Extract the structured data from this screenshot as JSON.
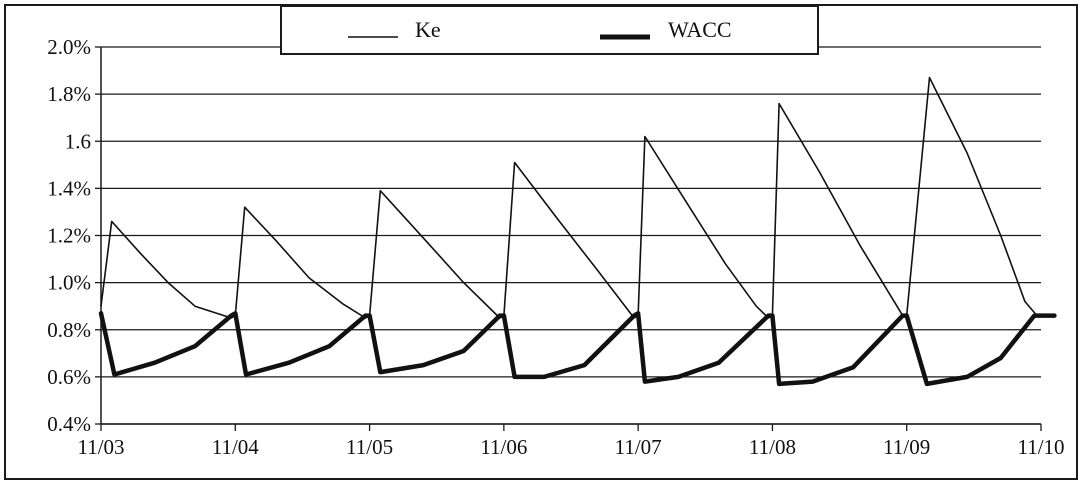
{
  "chart_data": {
    "type": "line",
    "title": "",
    "xlabel": "",
    "ylabel": "",
    "x_ticks": [
      "11/03",
      "11/04",
      "11/05",
      "11/06",
      "11/07",
      "11/08",
      "11/09",
      "11/10"
    ],
    "y_ticks": [
      "0.4%",
      "0.6%",
      "0.8%",
      "1.0%",
      "1.2%",
      "1.4%",
      "1.6",
      "1.8%",
      "2.0%"
    ],
    "xlim": [
      0,
      7
    ],
    "ylim": [
      0.4,
      2.0
    ],
    "grid": "horizontal",
    "legend_position": "top-center",
    "series": [
      {
        "name": "Ke",
        "color": "#111111",
        "stroke": "thin",
        "points": [
          [
            0.0,
            0.9
          ],
          [
            0.08,
            1.26
          ],
          [
            0.3,
            1.12
          ],
          [
            0.5,
            1.0
          ],
          [
            0.7,
            0.9
          ],
          [
            0.97,
            0.85
          ],
          [
            1.0,
            0.86
          ],
          [
            1.07,
            1.32
          ],
          [
            1.3,
            1.18
          ],
          [
            1.55,
            1.02
          ],
          [
            1.8,
            0.91
          ],
          [
            1.97,
            0.85
          ],
          [
            2.0,
            0.86
          ],
          [
            2.08,
            1.39
          ],
          [
            2.4,
            1.19
          ],
          [
            2.7,
            1.0
          ],
          [
            2.97,
            0.85
          ],
          [
            3.0,
            0.86
          ],
          [
            3.08,
            1.51
          ],
          [
            3.4,
            1.27
          ],
          [
            3.7,
            1.05
          ],
          [
            3.97,
            0.85
          ],
          [
            4.0,
            0.86
          ],
          [
            4.05,
            1.62
          ],
          [
            4.35,
            1.35
          ],
          [
            4.65,
            1.08
          ],
          [
            4.88,
            0.9
          ],
          [
            4.97,
            0.85
          ],
          [
            5.0,
            0.86
          ],
          [
            5.05,
            1.76
          ],
          [
            5.35,
            1.47
          ],
          [
            5.65,
            1.16
          ],
          [
            5.97,
            0.86
          ],
          [
            6.0,
            0.86
          ],
          [
            6.17,
            1.87
          ],
          [
            6.45,
            1.55
          ],
          [
            6.7,
            1.2
          ],
          [
            6.88,
            0.92
          ],
          [
            6.97,
            0.86
          ],
          [
            7.1,
            0.86
          ]
        ]
      },
      {
        "name": "WACC",
        "color": "#111111",
        "stroke": "thick",
        "points": [
          [
            0.0,
            0.87
          ],
          [
            0.1,
            0.61
          ],
          [
            0.4,
            0.66
          ],
          [
            0.7,
            0.73
          ],
          [
            0.97,
            0.86
          ],
          [
            1.0,
            0.87
          ],
          [
            1.08,
            0.61
          ],
          [
            1.4,
            0.66
          ],
          [
            1.7,
            0.73
          ],
          [
            1.97,
            0.86
          ],
          [
            2.0,
            0.86
          ],
          [
            2.08,
            0.62
          ],
          [
            2.4,
            0.65
          ],
          [
            2.7,
            0.71
          ],
          [
            2.97,
            0.86
          ],
          [
            3.0,
            0.86
          ],
          [
            3.08,
            0.6
          ],
          [
            3.3,
            0.6
          ],
          [
            3.6,
            0.65
          ],
          [
            3.97,
            0.86
          ],
          [
            4.0,
            0.87
          ],
          [
            4.05,
            0.58
          ],
          [
            4.3,
            0.6
          ],
          [
            4.6,
            0.66
          ],
          [
            4.97,
            0.86
          ],
          [
            5.0,
            0.86
          ],
          [
            5.05,
            0.57
          ],
          [
            5.3,
            0.58
          ],
          [
            5.6,
            0.64
          ],
          [
            5.97,
            0.86
          ],
          [
            6.0,
            0.86
          ],
          [
            6.15,
            0.57
          ],
          [
            6.45,
            0.6
          ],
          [
            6.7,
            0.68
          ],
          [
            6.95,
            0.86
          ],
          [
            7.1,
            0.86
          ]
        ]
      }
    ]
  }
}
